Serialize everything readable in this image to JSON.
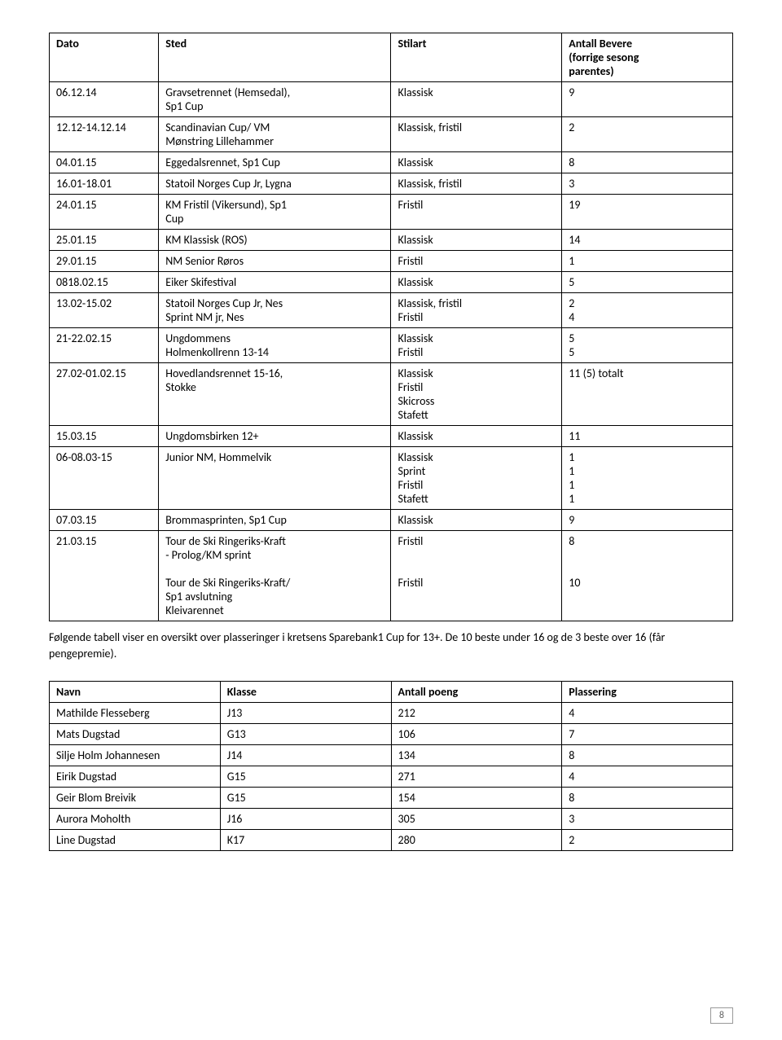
{
  "table1": {
    "headers": [
      "Dato",
      "Sted",
      "Stilart",
      "Antall Bevere\n(forrige sesong\nparentes)"
    ],
    "rows": [
      [
        "06.12.14",
        "Gravsetrennet (Hemsedal),\nSp1 Cup",
        "Klassisk",
        "9"
      ],
      [
        "12.12-14.12.14",
        "Scandinavian Cup/ VM\nMønstring Lillehammer",
        "Klassisk, fristil",
        "2"
      ],
      [
        "04.01.15",
        "Eggedalsrennet, Sp1 Cup",
        "Klassisk",
        "8"
      ],
      [
        "16.01-18.01",
        "Statoil Norges Cup Jr, Lygna",
        "Klassisk, fristil",
        "3"
      ],
      [
        "24.01.15",
        "KM Fristil (Vikersund), Sp1\nCup",
        "Fristil",
        "19"
      ],
      [
        "25.01.15",
        "KM Klassisk (ROS)",
        "Klassisk",
        "14"
      ],
      [
        "29.01.15",
        "NM Senior Røros",
        "Fristil",
        "1"
      ],
      [
        "0818.02.15",
        "Eiker Skifestival",
        "Klassisk",
        "5"
      ],
      [
        "13.02-15.02",
        "Statoil Norges Cup Jr, Nes\nSprint NM jr, Nes",
        "Klassisk, fristil\nFristil",
        "2\n4"
      ],
      [
        "21-22.02.15",
        "Ungdommens\nHolmenkollrenn 13-14",
        "Klassisk\nFristil",
        "5\n5"
      ],
      [
        "27.02-01.02.15",
        "Hovedlandsrennet 15-16,\nStokke",
        "Klassisk\nFristil\nSkicross\nStafett",
        "11 (5) totalt"
      ],
      [
        "15.03.15",
        "Ungdomsbirken 12+",
        "Klassisk",
        "11"
      ],
      [
        "06-08.03-15",
        "Junior NM, Hommelvik",
        "Klassisk\nSprint\nFristil\nStafett",
        "1\n1\n1\n1"
      ],
      [
        "07.03.15",
        "Brommasprinten, Sp1 Cup",
        "Klassisk",
        "9"
      ],
      [
        "21.03.15",
        "Tour de Ski Ringeriks-Kraft\n- Prolog/KM sprint\n\nTour de Ski Ringeriks-Kraft/\nSp1 avslutning\nKleivarennet",
        "Fristil\n\n\nFristil",
        "8\n\n\n10"
      ]
    ]
  },
  "note": "Følgende tabell viser en oversikt over plasseringer i kretsens Sparebank1 Cup for 13+. De 10 beste under 16 og de 3 beste over 16 (får pengepremie).",
  "table2": {
    "headers": [
      "Navn",
      "Klasse",
      "Antall poeng",
      "Plassering"
    ],
    "rows": [
      [
        "Mathilde Flesseberg",
        "J13",
        "212",
        "4"
      ],
      [
        "Mats Dugstad",
        "G13",
        "106",
        "7"
      ],
      [
        "Silje Holm Johannesen",
        "J14",
        "134",
        "8"
      ],
      [
        "Eirik Dugstad",
        "G15",
        "271",
        "4"
      ],
      [
        "Geir Blom Breivik",
        "G15",
        "154",
        "8"
      ],
      [
        "Aurora Moholth",
        "J16",
        "305",
        "3"
      ],
      [
        "Line Dugstad",
        "K17",
        "280",
        "2"
      ]
    ]
  },
  "page_number": "8"
}
